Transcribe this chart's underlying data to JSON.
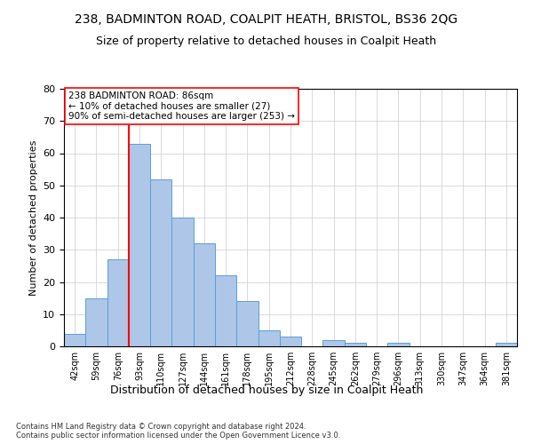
{
  "title_line1": "238, BADMINTON ROAD, COALPIT HEATH, BRISTOL, BS36 2QG",
  "title_line2": "Size of property relative to detached houses in Coalpit Heath",
  "xlabel": "Distribution of detached houses by size in Coalpit Heath",
  "ylabel": "Number of detached properties",
  "footnote": "Contains HM Land Registry data © Crown copyright and database right 2024.\nContains public sector information licensed under the Open Government Licence v3.0.",
  "bin_labels": [
    "42sqm",
    "59sqm",
    "76sqm",
    "93sqm",
    "110sqm",
    "127sqm",
    "144sqm",
    "161sqm",
    "178sqm",
    "195sqm",
    "212sqm",
    "228sqm",
    "245sqm",
    "262sqm",
    "279sqm",
    "296sqm",
    "313sqm",
    "330sqm",
    "347sqm",
    "364sqm",
    "381sqm"
  ],
  "bar_values": [
    4,
    15,
    27,
    63,
    52,
    40,
    32,
    22,
    14,
    5,
    3,
    0,
    2,
    1,
    0,
    1,
    0,
    0,
    0,
    0,
    1
  ],
  "bar_color": "#aec6e8",
  "bar_edge_color": "#5a9fd4",
  "vline_x": 2.5,
  "vline_color": "red",
  "annotation_title": "238 BADMINTON ROAD: 86sqm",
  "annotation_line2": "← 10% of detached houses are smaller (27)",
  "annotation_line3": "90% of semi-detached houses are larger (253) →",
  "ylim": [
    0,
    80
  ],
  "yticks": [
    0,
    10,
    20,
    30,
    40,
    50,
    60,
    70,
    80
  ],
  "bg_color": "#ffffff",
  "grid_color": "#cccccc",
  "title1_fontsize": 10,
  "title2_fontsize": 9,
  "xlabel_fontsize": 9,
  "ylabel_fontsize": 8,
  "footnote_fontsize": 6
}
